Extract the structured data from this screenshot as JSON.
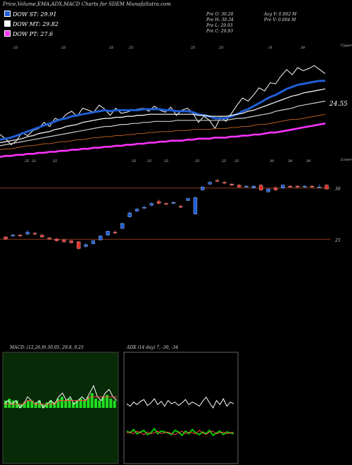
{
  "header": {
    "title": "Price,Volume,EMA,ADX,MACD Charts for SDEM MunafaSutra.com"
  },
  "legend": [
    {
      "label": "DOW ST: 29.91",
      "color": "#1f5fd6"
    },
    {
      "label": "DOW MT: 29.82",
      "color": "#ffffff"
    },
    {
      "label": "DOW PT: 27.6",
      "color": "#ff33ff"
    }
  ],
  "ohlc": {
    "open": "Pre  O: 30.28",
    "high": "Pre  H: 30.34",
    "low": "Pre  L: 29.93",
    "close": "Pre  C: 29.93",
    "avg_vol": "Avg V: 0.002  M",
    "prev_vol": "Pre  V: 0.004  M"
  },
  "chart_data": [
    {
      "type": "line",
      "name": "price-ema",
      "x_count": 60,
      "series": [
        {
          "color": "#ffffff",
          "values": [
            26.0,
            25.6,
            25.0,
            25.4,
            26.2,
            25.9,
            26.4,
            26.6,
            27.2,
            26.8,
            27.6,
            27.4,
            28.0,
            28.3,
            27.8,
            28.6,
            28.4,
            28.2,
            28.9,
            28.5,
            27.9,
            28.6,
            28.1,
            28.2,
            28.4,
            28.5,
            28.6,
            28.3,
            28.8,
            28.4,
            28.2,
            28.7,
            27.9,
            28.4,
            28.6,
            28.1,
            27.2,
            27.8,
            27.4,
            26.6,
            27.7,
            27.3,
            28.1,
            28.9,
            29.6,
            29.3,
            29.9,
            30.6,
            30.3,
            31.1,
            31.0,
            31.8,
            32.4,
            31.9,
            32.6,
            32.3,
            32.5,
            32.8,
            32.4,
            32.0
          ]
        },
        {
          "color": "#1f5fd6",
          "values": [
            25.5,
            25.6,
            25.7,
            25.9,
            26.1,
            26.3,
            26.5,
            26.7,
            26.9,
            27.1,
            27.3,
            27.5,
            27.6,
            27.8,
            27.9,
            28.0,
            28.1,
            28.2,
            28.3,
            28.4,
            28.3,
            28.4,
            28.4,
            28.4,
            28.4,
            28.4,
            28.5,
            28.5,
            28.5,
            28.5,
            28.4,
            28.4,
            28.3,
            28.3,
            28.3,
            28.2,
            28.0,
            27.9,
            27.8,
            27.6,
            27.6,
            27.6,
            27.8,
            28.0,
            28.3,
            28.5,
            28.8,
            29.1,
            29.4,
            29.7,
            29.9,
            30.2,
            30.5,
            30.7,
            30.9,
            31.0,
            31.1,
            31.2,
            31.3,
            31.3
          ]
        },
        {
          "color": "#ffffff",
          "values": [
            25.2,
            25.3,
            25.4,
            25.5,
            25.6,
            25.8,
            25.9,
            26.1,
            26.2,
            26.3,
            26.5,
            26.6,
            26.8,
            26.9,
            27.0,
            27.2,
            27.3,
            27.4,
            27.5,
            27.6,
            27.6,
            27.7,
            27.7,
            27.8,
            27.8,
            27.9,
            27.9,
            28.0,
            28.0,
            28.0,
            28.0,
            28.0,
            28.0,
            28.0,
            28.0,
            28.0,
            27.9,
            27.9,
            27.8,
            27.8,
            27.8,
            27.8,
            27.9,
            28.0,
            28.1,
            28.3,
            28.4,
            28.6,
            28.8,
            29.0,
            29.2,
            29.4,
            29.6,
            29.8,
            29.9,
            30.1,
            30.2,
            30.3,
            30.4,
            30.5
          ]
        },
        {
          "color": "#cccccc",
          "values": [
            24.9,
            25.0,
            25.1,
            25.2,
            25.3,
            25.4,
            25.5,
            25.6,
            25.7,
            25.8,
            25.9,
            26.0,
            26.1,
            26.2,
            26.3,
            26.4,
            26.5,
            26.6,
            26.7,
            26.8,
            26.8,
            26.9,
            27.0,
            27.0,
            27.1,
            27.1,
            27.2,
            27.2,
            27.3,
            27.3,
            27.3,
            27.3,
            27.4,
            27.4,
            27.4,
            27.4,
            27.4,
            27.4,
            27.4,
            27.4,
            27.4,
            27.4,
            27.5,
            27.6,
            27.6,
            27.7,
            27.8,
            27.9,
            28.0,
            28.1,
            28.3,
            28.4,
            28.5,
            28.6,
            28.8,
            28.9,
            29.0,
            29.1,
            29.2,
            29.3
          ]
        },
        {
          "color": "#b35a1f",
          "values": [
            24.5,
            24.6,
            24.6,
            24.7,
            24.8,
            24.9,
            24.9,
            25.0,
            25.1,
            25.1,
            25.2,
            25.3,
            25.3,
            25.4,
            25.5,
            25.5,
            25.6,
            25.7,
            25.7,
            25.8,
            25.8,
            25.9,
            25.9,
            26.0,
            26.0,
            26.1,
            26.1,
            26.2,
            26.2,
            26.3,
            26.3,
            26.3,
            26.4,
            26.4,
            26.4,
            26.5,
            26.5,
            26.5,
            26.5,
            26.6,
            26.6,
            26.6,
            26.7,
            26.7,
            26.8,
            26.8,
            26.9,
            27.0,
            27.0,
            27.1,
            27.2,
            27.3,
            27.4,
            27.5,
            27.5,
            27.6,
            27.7,
            27.8,
            27.9,
            28.0
          ]
        },
        {
          "color": "#ff33ff",
          "values": [
            23.8,
            23.9,
            23.9,
            24.0,
            24.0,
            24.1,
            24.1,
            24.2,
            24.2,
            24.3,
            24.3,
            24.4,
            24.4,
            24.5,
            24.5,
            24.6,
            24.6,
            24.7,
            24.7,
            24.8,
            24.8,
            24.9,
            24.9,
            25.0,
            25.0,
            25.1,
            25.1,
            25.2,
            25.2,
            25.3,
            25.3,
            25.4,
            25.4,
            25.4,
            25.5,
            25.5,
            25.6,
            25.6,
            25.6,
            25.7,
            25.7,
            25.7,
            25.8,
            25.8,
            25.9,
            25.9,
            26.0,
            26.0,
            26.1,
            26.2,
            26.2,
            26.3,
            26.4,
            26.5,
            26.6,
            26.7,
            26.8,
            26.9,
            27.0,
            27.1
          ]
        }
      ],
      "ylim": [
        22.6,
        34.4
      ],
      "right_labels": {
        "upper": "Upper",
        "value": "24.55",
        "lower": "Lower"
      },
      "top_ticks": [
        "25",
        "25",
        "25",
        "25",
        "25",
        "25",
        "31",
        "30"
      ],
      "bottom_ticks": [
        "25",
        "25",
        "25",
        "25",
        "25",
        "25",
        "25",
        "25",
        "25",
        "30",
        "30",
        "30"
      ]
    },
    {
      "type": "candlestick",
      "name": "volume-boxes",
      "levels": [
        "30",
        "25"
      ],
      "candles": [
        {
          "o": 24.9,
          "c": 24.7,
          "h": 25.0,
          "l": 24.6
        },
        {
          "o": 25.0,
          "c": 25.1,
          "h": 25.2,
          "l": 24.9
        },
        {
          "o": 25.1,
          "c": 25.0,
          "h": 25.2,
          "l": 24.9
        },
        {
          "o": 25.2,
          "c": 25.4,
          "h": 25.6,
          "l": 25.1
        },
        {
          "o": 25.3,
          "c": 25.2,
          "h": 25.4,
          "l": 25.1
        },
        {
          "o": 25.1,
          "c": 24.9,
          "h": 25.2,
          "l": 24.8
        },
        {
          "o": 24.8,
          "c": 24.7,
          "h": 24.9,
          "l": 24.6
        },
        {
          "o": 24.7,
          "c": 24.5,
          "h": 24.8,
          "l": 24.4
        },
        {
          "o": 24.6,
          "c": 24.4,
          "h": 24.7,
          "l": 24.3
        },
        {
          "o": 24.5,
          "c": 24.3,
          "h": 24.6,
          "l": 24.2
        },
        {
          "o": 24.4,
          "c": 23.7,
          "h": 24.5,
          "l": 23.6
        },
        {
          "o": 23.9,
          "c": 24.1,
          "h": 24.3,
          "l": 23.8
        },
        {
          "o": 24.2,
          "c": 24.5,
          "h": 24.6,
          "l": 24.1
        },
        {
          "o": 24.6,
          "c": 25.0,
          "h": 25.1,
          "l": 24.5
        },
        {
          "o": 25.1,
          "c": 25.5,
          "h": 25.6,
          "l": 25.0
        },
        {
          "o": 25.4,
          "c": 25.3,
          "h": 25.6,
          "l": 25.2
        },
        {
          "o": 25.8,
          "c": 26.3,
          "h": 26.4,
          "l": 25.7
        },
        {
          "o": 27.0,
          "c": 27.4,
          "h": 27.6,
          "l": 26.9
        },
        {
          "o": 27.6,
          "c": 27.8,
          "h": 27.9,
          "l": 27.5
        },
        {
          "o": 27.9,
          "c": 28.0,
          "h": 28.2,
          "l": 27.8
        },
        {
          "o": 28.2,
          "c": 28.4,
          "h": 28.5,
          "l": 28.1
        },
        {
          "o": 28.6,
          "c": 28.4,
          "h": 28.8,
          "l": 28.3
        },
        {
          "o": 28.4,
          "c": 28.3,
          "h": 28.5,
          "l": 28.2
        },
        {
          "o": 28.4,
          "c": 28.5,
          "h": 28.6,
          "l": 28.3
        },
        {
          "o": 28.1,
          "c": 28.0,
          "h": 28.2,
          "l": 27.9
        },
        {
          "o": 28.7,
          "c": 28.9,
          "h": 29.0,
          "l": 28.6
        },
        {
          "o": 27.3,
          "c": 29.0,
          "h": 29.1,
          "l": 27.2
        },
        {
          "o": 29.8,
          "c": 30.1,
          "h": 30.2,
          "l": 29.7
        },
        {
          "o": 30.4,
          "c": 30.6,
          "h": 30.7,
          "l": 30.3
        },
        {
          "o": 30.8,
          "c": 30.7,
          "h": 30.9,
          "l": 30.6
        },
        {
          "o": 30.6,
          "c": 30.5,
          "h": 30.7,
          "l": 30.4
        },
        {
          "o": 30.4,
          "c": 30.3,
          "h": 30.5,
          "l": 30.2
        },
        {
          "o": 30.3,
          "c": 30.1,
          "h": 30.4,
          "l": 30.0
        },
        {
          "o": 30.1,
          "c": 30.2,
          "h": 30.3,
          "l": 30.0
        },
        {
          "o": 30.0,
          "c": 30.2,
          "h": 30.3,
          "l": 29.9
        },
        {
          "o": 30.3,
          "c": 29.8,
          "h": 30.4,
          "l": 29.7
        },
        {
          "o": 29.6,
          "c": 29.9,
          "h": 30.0,
          "l": 29.5
        },
        {
          "o": 30.0,
          "c": 29.8,
          "h": 30.2,
          "l": 29.7
        },
        {
          "o": 30.0,
          "c": 30.3,
          "h": 30.4,
          "l": 29.9
        },
        {
          "o": 30.2,
          "c": 30.1,
          "h": 30.3,
          "l": 30.0
        },
        {
          "o": 30.2,
          "c": 30.1,
          "h": 30.3,
          "l": 30.0
        },
        {
          "o": 30.1,
          "c": 30.2,
          "h": 30.3,
          "l": 30.0
        },
        {
          "o": 30.2,
          "c": 30.1,
          "h": 30.3,
          "l": 30.0
        },
        {
          "o": 30.1,
          "c": 30.1,
          "h": 30.4,
          "l": 30.0
        },
        {
          "o": 30.3,
          "c": 29.9,
          "h": 30.4,
          "l": 29.8
        }
      ],
      "ylim": [
        22.8,
        31.6
      ]
    },
    {
      "type": "line",
      "name": "macd",
      "title": "MACD: (12,26,9) 30.05, 29.8, 0.25",
      "series": [
        {
          "color": "#ffffff",
          "values": [
            0.1,
            0.2,
            0.1,
            0.2,
            0.0,
            0.1,
            0.3,
            0.2,
            0.1,
            0.2,
            0.0,
            0.1,
            0.2,
            0.1,
            0.3,
            0.4,
            0.2,
            0.3,
            0.1,
            0.2,
            0.3,
            0.2,
            0.4,
            0.6,
            0.3,
            0.2,
            0.4,
            0.5,
            0.3,
            0.2
          ]
        },
        {
          "color": "#ff4444",
          "values": [
            0.1,
            0.1,
            0.1,
            0.1,
            0.1,
            0.1,
            0.2,
            0.2,
            0.1,
            0.1,
            0.1,
            0.1,
            0.1,
            0.1,
            0.2,
            0.2,
            0.2,
            0.2,
            0.2,
            0.2,
            0.2,
            0.2,
            0.3,
            0.3,
            0.3,
            0.3,
            0.3,
            0.3,
            0.3,
            0.3
          ]
        }
      ],
      "histogram": [
        0.2,
        0.25,
        0.2,
        0.2,
        0.1,
        0.15,
        0.2,
        0.2,
        0.15,
        0.2,
        0.1,
        0.15,
        0.2,
        0.15,
        0.25,
        0.3,
        0.2,
        0.25,
        0.15,
        0.2,
        0.25,
        0.2,
        0.3,
        0.4,
        0.25,
        0.2,
        0.3,
        0.35,
        0.25,
        0.2
      ],
      "ylim": [
        -1.5,
        1.5
      ]
    },
    {
      "type": "line",
      "name": "adx",
      "title": "ADX          (14  day) 7, -30, -34",
      "series": [
        {
          "color": "#ffffff",
          "values": [
            55,
            52,
            57,
            54,
            58,
            60,
            53,
            56,
            61,
            54,
            58,
            52,
            59,
            55,
            57,
            53,
            56,
            60,
            54,
            57,
            55,
            52,
            58,
            63,
            56,
            50,
            59,
            54,
            61,
            52,
            57,
            55
          ]
        },
        {
          "color": "#00cc00",
          "values": [
            22,
            20,
            24,
            19,
            21,
            23,
            18,
            20,
            25,
            19,
            22,
            21,
            20,
            18,
            23,
            21,
            17,
            22,
            19,
            24,
            20,
            18,
            21,
            19,
            23,
            17,
            20,
            22,
            18,
            21,
            20,
            19
          ]
        },
        {
          "color": "#ff4444",
          "values": [
            20,
            21,
            19,
            22,
            20,
            18,
            21,
            19,
            20,
            22,
            19,
            20,
            21,
            19,
            18,
            20,
            22,
            19,
            21,
            20,
            19,
            23,
            20,
            18,
            21,
            22,
            19,
            20,
            21,
            19,
            20,
            21
          ]
        }
      ],
      "ylim": [
        0,
        100
      ]
    }
  ]
}
